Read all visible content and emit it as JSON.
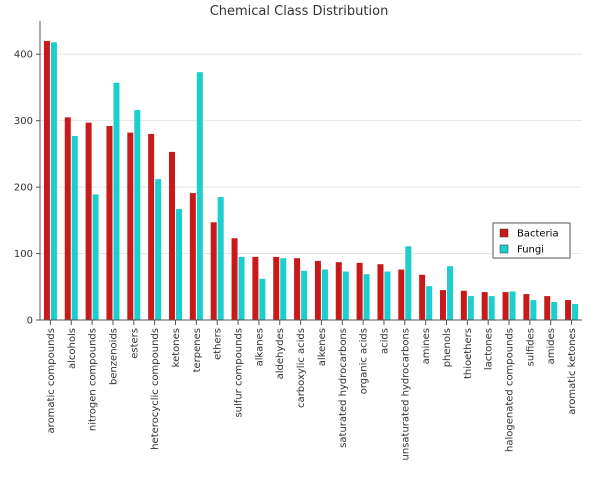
{
  "chart_data": {
    "type": "bar",
    "title": "Chemical Class Distribution",
    "xlabel": "",
    "ylabel": "",
    "ylim": [
      0,
      450
    ],
    "yticks": [
      0,
      100,
      200,
      300,
      400
    ],
    "grid": true,
    "legend_position": "right",
    "categories": [
      "aromatic compounds",
      "alcohols",
      "nitrogen compounds",
      "benzenoids",
      "esters",
      "heterocyclic compounds",
      "ketones",
      "terpenes",
      "ethers",
      "sulfur compounds",
      "alkanes",
      "aldehydes",
      "carboxylic acids",
      "alkenes",
      "saturated hydrocarbons",
      "organic acids",
      "acids",
      "unsaturated hydrocarbons",
      "amines",
      "phenols",
      "thioethers",
      "lactones",
      "halogenated compounds",
      "sulfides",
      "amides",
      "aromatic ketones"
    ],
    "series": [
      {
        "name": "Bacteria",
        "color": "#c81a1a",
        "values": [
          420,
          305,
          297,
          292,
          282,
          280,
          253,
          191,
          147,
          123,
          95,
          95,
          93,
          89,
          87,
          86,
          84,
          76,
          68,
          45,
          44,
          42,
          42,
          39,
          36,
          30
        ]
      },
      {
        "name": "Fungi",
        "color": "#1ccfcf",
        "values": [
          418,
          277,
          189,
          357,
          316,
          212,
          167,
          373,
          185,
          95,
          62,
          93,
          74,
          76,
          73,
          69,
          73,
          111,
          51,
          81,
          36,
          36,
          43,
          30,
          27,
          24
        ]
      }
    ]
  }
}
